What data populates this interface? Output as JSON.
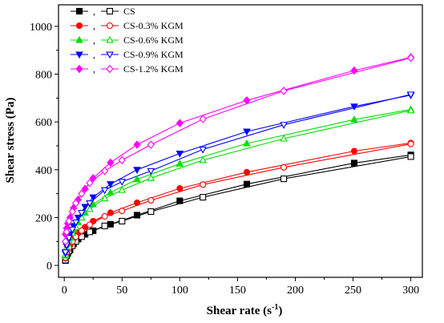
{
  "chart_data": {
    "type": "scatter",
    "xlabel": "Shear rate (s",
    "xlabel_superscript": "-1",
    "xlabel_suffix": ")",
    "ylabel": "Shear stress (Pa)",
    "xlim": [
      -5,
      310
    ],
    "ylim": [
      -50,
      1090
    ],
    "xticks": [
      0,
      50,
      100,
      150,
      200,
      250,
      300
    ],
    "yticks": [
      0,
      200,
      400,
      600,
      800,
      1000
    ],
    "grid": false,
    "legend_position": "top-left",
    "series": [
      {
        "name": "CS",
        "color": "#000000",
        "filled_marker": "square",
        "open_marker": "square",
        "filled_points": [
          [
            1,
            20
          ],
          [
            2,
            40
          ],
          [
            3,
            50
          ],
          [
            5,
            65
          ],
          [
            8,
            90
          ],
          [
            12,
            110
          ],
          [
            18,
            130
          ],
          [
            25,
            145
          ],
          [
            40,
            172
          ],
          [
            63,
            210
          ],
          [
            100,
            270
          ],
          [
            158,
            340
          ],
          [
            251,
            428
          ],
          [
            300,
            462
          ]
        ],
        "open_points": [
          [
            1,
            22
          ],
          [
            2,
            42
          ],
          [
            4,
            60
          ],
          [
            7,
            82
          ],
          [
            10,
            100
          ],
          [
            15,
            120
          ],
          [
            22,
            140
          ],
          [
            35,
            165
          ],
          [
            50,
            185
          ],
          [
            75,
            225
          ],
          [
            120,
            285
          ],
          [
            190,
            362
          ],
          [
            300,
            455
          ]
        ]
      },
      {
        "name": "CS-0.3% KGM",
        "color": "#ff0000",
        "filled_marker": "circle",
        "open_marker": "circle",
        "filled_points": [
          [
            1,
            30
          ],
          [
            2,
            50
          ],
          [
            3,
            65
          ],
          [
            5,
            85
          ],
          [
            8,
            110
          ],
          [
            12,
            135
          ],
          [
            18,
            160
          ],
          [
            25,
            185
          ],
          [
            40,
            220
          ],
          [
            63,
            262
          ],
          [
            100,
            322
          ],
          [
            158,
            390
          ],
          [
            251,
            478
          ],
          [
            300,
            512
          ]
        ],
        "open_points": [
          [
            1,
            32
          ],
          [
            2,
            55
          ],
          [
            4,
            75
          ],
          [
            7,
            100
          ],
          [
            10,
            120
          ],
          [
            15,
            145
          ],
          [
            22,
            170
          ],
          [
            35,
            205
          ],
          [
            50,
            228
          ],
          [
            75,
            272
          ],
          [
            120,
            338
          ],
          [
            190,
            410
          ],
          [
            300,
            508
          ]
        ]
      },
      {
        "name": "CS-0.6% KGM",
        "color": "#00dd00",
        "filled_marker": "triangle-up",
        "open_marker": "triangle-up",
        "filled_points": [
          [
            1,
            40
          ],
          [
            2,
            70
          ],
          [
            3,
            90
          ],
          [
            5,
            115
          ],
          [
            8,
            150
          ],
          [
            12,
            180
          ],
          [
            18,
            220
          ],
          [
            25,
            255
          ],
          [
            40,
            305
          ],
          [
            63,
            360
          ],
          [
            100,
            425
          ],
          [
            158,
            510
          ],
          [
            251,
            610
          ],
          [
            300,
            652
          ]
        ],
        "open_points": [
          [
            1,
            45
          ],
          [
            2,
            75
          ],
          [
            4,
            105
          ],
          [
            7,
            135
          ],
          [
            10,
            160
          ],
          [
            15,
            200
          ],
          [
            22,
            235
          ],
          [
            35,
            280
          ],
          [
            50,
            315
          ],
          [
            75,
            365
          ],
          [
            120,
            440
          ],
          [
            190,
            530
          ],
          [
            300,
            648
          ]
        ]
      },
      {
        "name": "CS-0.9% KGM",
        "color": "#0000ff",
        "filled_marker": "triangle-down",
        "open_marker": "triangle-down",
        "filled_points": [
          [
            1,
            50
          ],
          [
            2,
            80
          ],
          [
            3,
            100
          ],
          [
            5,
            130
          ],
          [
            8,
            165
          ],
          [
            12,
            200
          ],
          [
            18,
            245
          ],
          [
            25,
            285
          ],
          [
            40,
            340
          ],
          [
            63,
            400
          ],
          [
            100,
            468
          ],
          [
            158,
            560
          ],
          [
            251,
            665
          ],
          [
            300,
            712
          ]
        ],
        "open_points": [
          [
            1,
            55
          ],
          [
            2,
            85
          ],
          [
            4,
            115
          ],
          [
            7,
            150
          ],
          [
            10,
            180
          ],
          [
            15,
            220
          ],
          [
            22,
            260
          ],
          [
            35,
            315
          ],
          [
            50,
            350
          ],
          [
            75,
            395
          ],
          [
            120,
            485
          ],
          [
            190,
            588
          ],
          [
            300,
            715
          ]
        ]
      },
      {
        "name": "CS-1.2% KGM",
        "color": "#ff00ff",
        "filled_marker": "diamond",
        "open_marker": "diamond",
        "filled_points": [
          [
            1,
            130
          ],
          [
            2,
            155
          ],
          [
            3,
            175
          ],
          [
            5,
            200
          ],
          [
            8,
            240
          ],
          [
            12,
            275
          ],
          [
            18,
            320
          ],
          [
            25,
            365
          ],
          [
            40,
            430
          ],
          [
            63,
            505
          ],
          [
            100,
            595
          ],
          [
            158,
            690
          ],
          [
            251,
            815
          ],
          [
            300,
            870
          ]
        ],
        "open_points": [
          [
            1,
            100
          ],
          [
            2,
            140
          ],
          [
            4,
            185
          ],
          [
            7,
            225
          ],
          [
            10,
            260
          ],
          [
            15,
            300
          ],
          [
            22,
            345
          ],
          [
            35,
            395
          ],
          [
            50,
            440
          ],
          [
            75,
            505
          ],
          [
            120,
            612
          ],
          [
            190,
            730
          ],
          [
            300,
            868
          ]
        ]
      }
    ]
  }
}
